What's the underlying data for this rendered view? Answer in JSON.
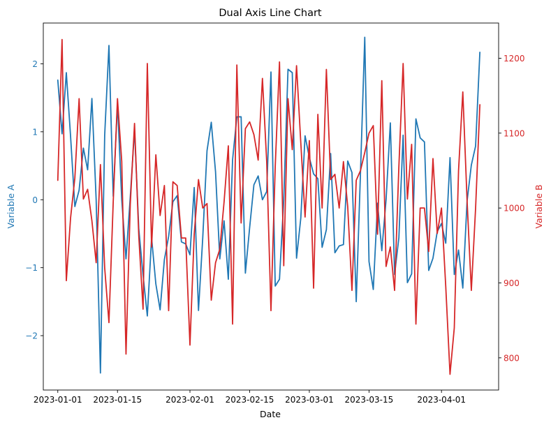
{
  "chart_data": {
    "type": "line",
    "title": "Dual Axis Line Chart",
    "xlabel": "Date",
    "x_start_date": "2023-01-01",
    "x_end_date": "2023-04-10",
    "x_range_days": [
      -3.4,
      103.4
    ],
    "x_ticks": [
      {
        "day": 0,
        "label": "2023-01-01"
      },
      {
        "day": 14,
        "label": "2023-01-15"
      },
      {
        "day": 31,
        "label": "2023-02-01"
      },
      {
        "day": 45,
        "label": "2023-02-15"
      },
      {
        "day": 59,
        "label": "2023-03-01"
      },
      {
        "day": 73,
        "label": "2023-03-15"
      },
      {
        "day": 90,
        "label": "2023-04-01"
      }
    ],
    "y_left": {
      "label": "Variable A",
      "color": "#1f77b4",
      "ylim": [
        -2.8,
        2.6
      ],
      "ticks": [
        {
          "value": -2,
          "label": "−2"
        },
        {
          "value": -1,
          "label": "−1"
        },
        {
          "value": 0,
          "label": "0"
        },
        {
          "value": 1,
          "label": "1"
        },
        {
          "value": 2,
          "label": "2"
        }
      ]
    },
    "y_right": {
      "label": "Variable B",
      "color": "#d62728",
      "ylim": [
        757,
        1247
      ],
      "ticks": [
        {
          "value": 800,
          "label": "800"
        },
        {
          "value": 900,
          "label": "900"
        },
        {
          "value": 1000,
          "label": "1000"
        },
        {
          "value": 1100,
          "label": "1100"
        },
        {
          "value": 1200,
          "label": "1200"
        }
      ]
    },
    "series": [
      {
        "name": "Variable A",
        "axis": "left",
        "color": "#1f77b4",
        "values": [
          1.76,
          0.97,
          1.87,
          0.93,
          -0.1,
          0.14,
          0.76,
          0.44,
          1.49,
          0.0,
          -2.55,
          0.95,
          2.27,
          0.05,
          1.42,
          0.0,
          -0.87,
          0.04,
          1.03,
          -0.43,
          -1.11,
          -1.71,
          -0.56,
          -1.24,
          -1.62,
          -0.88,
          -0.54,
          -0.03,
          0.06,
          -0.62,
          -0.65,
          -0.81,
          0.18,
          -1.63,
          -0.56,
          0.72,
          1.14,
          0.41,
          -0.87,
          -0.31,
          -1.17,
          0.59,
          1.22,
          1.22,
          -1.08,
          -0.41,
          0.22,
          0.35,
          0.0,
          0.12,
          1.88,
          -1.27,
          -1.17,
          0.0,
          1.92,
          1.87,
          -0.86,
          -0.27,
          0.94,
          0.62,
          0.38,
          0.31,
          -0.7,
          -0.44,
          0.68,
          -0.78,
          -0.68,
          -0.66,
          0.57,
          0.4,
          -1.5,
          0.4,
          2.39,
          -0.91,
          -1.32,
          -0.05,
          -0.75,
          0.0,
          1.13,
          -1.1,
          -0.56,
          0.95,
          -1.22,
          -1.09,
          1.19,
          0.91,
          0.85,
          -1.04,
          -0.86,
          -0.47,
          -0.35,
          -0.64,
          0.62,
          -1.1,
          -0.74,
          -1.3,
          -0.02,
          0.51,
          0.79,
          2.17
        ]
      },
      {
        "name": "Variable B",
        "axis": "right",
        "color": "#d62728",
        "values": [
          1037,
          1225,
          903,
          987,
          1040,
          1146,
          1012,
          1025,
          983,
          927,
          1058,
          920,
          847,
          1008,
          1146,
          1062,
          805,
          1005,
          1113,
          962,
          865,
          1193,
          948,
          1071,
          990,
          1030,
          863,
          1035,
          1030,
          960,
          960,
          817,
          965,
          1038,
          1000,
          1006,
          877,
          927,
          945,
          1008,
          1083,
          845,
          1191,
          980,
          1106,
          1115,
          1098,
          1064,
          1173,
          1062,
          863,
          1055,
          1195,
          923,
          1146,
          1078,
          1190,
          1087,
          988,
          1090,
          893,
          1125,
          1000,
          1185,
          1038,
          1045,
          1000,
          1062,
          1002,
          890,
          1037,
          1050,
          1074,
          1100,
          1110,
          965,
          1170,
          922,
          948,
          890,
          1055,
          1193,
          1012,
          1085,
          845,
          1000,
          1000,
          942,
          1066,
          966,
          1000,
          895,
          778,
          840,
          1050,
          1155,
          1010,
          890,
          1000,
          1138
        ]
      }
    ]
  }
}
